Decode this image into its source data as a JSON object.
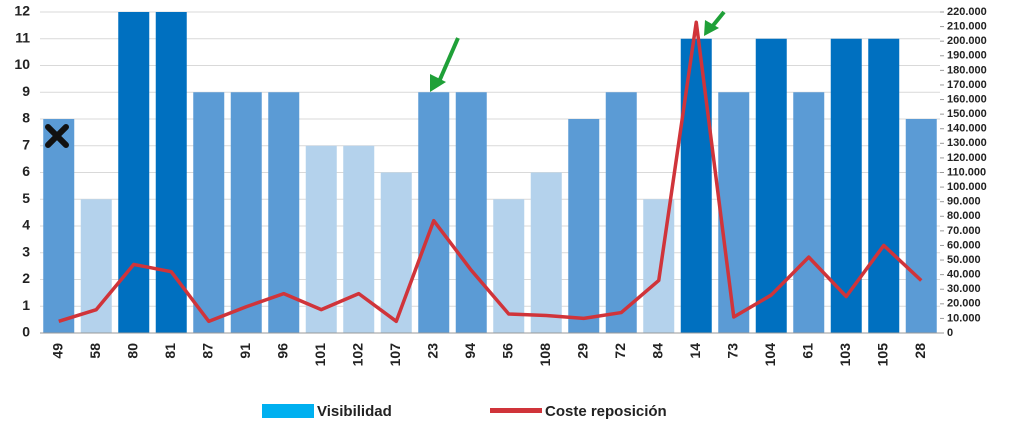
{
  "chart_data": {
    "type": "bar_line",
    "categories": [
      "49",
      "58",
      "80",
      "81",
      "87",
      "91",
      "96",
      "101",
      "102",
      "107",
      "23",
      "94",
      "56",
      "108",
      "29",
      "72",
      "84",
      "14",
      "73",
      "104",
      "61",
      "103",
      "105",
      "28"
    ],
    "series": [
      {
        "name": "Visibilidad",
        "type": "bar",
        "color": "#00b0f0",
        "values": [
          8,
          5,
          12,
          12,
          9,
          9,
          9,
          7,
          7,
          6,
          9,
          9,
          5,
          6,
          8,
          9,
          5,
          11,
          9,
          11,
          9,
          11,
          11,
          8
        ],
        "colors": [
          "#5b9bd5",
          "#b4d2ec",
          "#0070c0",
          "#0070c0",
          "#5b9bd5",
          "#5b9bd5",
          "#5b9bd5",
          "#b4d2ec",
          "#b4d2ec",
          "#b4d2ec",
          "#5b9bd5",
          "#5b9bd5",
          "#b4d2ec",
          "#b4d2ec",
          "#5b9bd5",
          "#5b9bd5",
          "#b4d2ec",
          "#0070c0",
          "#5b9bd5",
          "#0070c0",
          "#5b9bd5",
          "#0070c0",
          "#0070c0",
          "#5b9bd5"
        ]
      },
      {
        "name": "Coste reposición",
        "type": "line",
        "axis": "y2",
        "color": "#d0343a",
        "values": [
          8000,
          16000,
          47000,
          42000,
          8000,
          18000,
          27000,
          16000,
          27000,
          8000,
          77000,
          43000,
          13000,
          12000,
          10000,
          14000,
          36000,
          213000,
          11000,
          26000,
          52000,
          25000,
          60000,
          36000
        ]
      }
    ],
    "ylim": [
      0,
      12
    ],
    "yticks": [
      0,
      1,
      2,
      3,
      4,
      5,
      6,
      7,
      8,
      9,
      10,
      11,
      12
    ],
    "y2lim": [
      0,
      220000
    ],
    "y2ticks": [
      0,
      {
        "value": 10000,
        "label": "10.000"
      },
      {
        "value": 20000,
        "label": "20.000"
      },
      {
        "value": 30000,
        "label": "30.000"
      },
      {
        "value": 40000,
        "label": "40.000"
      },
      {
        "value": 50000,
        "label": "50.000"
      },
      {
        "value": 60000,
        "label": "60.000"
      },
      {
        "value": 70000,
        "label": "70.000"
      },
      {
        "value": 80000,
        "label": "80.000"
      },
      {
        "value": 90000,
        "label": "90.000"
      },
      {
        "value": 100000,
        "label": "100.000"
      },
      {
        "value": 110000,
        "label": "110.000"
      },
      {
        "value": 120000,
        "label": "120.000"
      },
      {
        "value": 130000,
        "label": "130.000"
      },
      {
        "value": 140000,
        "label": "140.000"
      },
      {
        "value": 150000,
        "label": "150.000"
      },
      {
        "value": 160000,
        "label": "160.000"
      },
      {
        "value": 170000,
        "label": "170.000"
      },
      {
        "value": 180000,
        "label": "180.000"
      },
      {
        "value": 190000,
        "label": "190.000"
      },
      {
        "value": 200000,
        "label": "200.000"
      },
      {
        "value": 210000,
        "label": "210.000"
      },
      {
        "value": 220000,
        "label": "220.000"
      }
    ],
    "grid": true
  }
}
